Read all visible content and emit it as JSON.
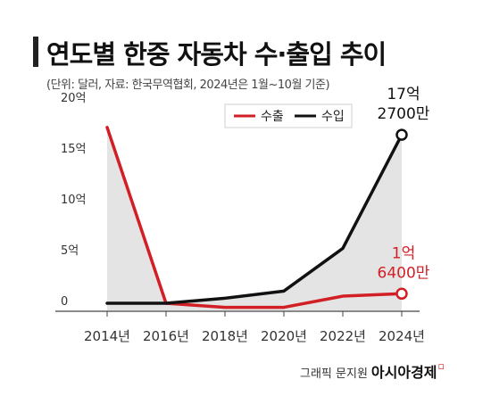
{
  "header": {
    "title": "연도별 한중 자동차 수·출입 추이",
    "subtitle": "(단위: 달러, 자료: 한국무역협회, 2024년은 1월~10월 기준)"
  },
  "footer": {
    "credit": "그래픽 문지원",
    "brand": "아시아경제",
    "brand_mark": "ㅁ"
  },
  "colors": {
    "export": "#d21f26",
    "import": "#111111",
    "area_fill": "#e4e4e4",
    "axis": "#444444"
  },
  "chart_data": {
    "type": "line",
    "x": [
      2014,
      2016,
      2018,
      2020,
      2022,
      2024
    ],
    "xticks": [
      "2014년",
      "2016년",
      "2018년",
      "2020년",
      "2022년",
      "2024년"
    ],
    "ylim": [
      0,
      20
    ],
    "yticks": [
      0,
      5,
      10,
      15,
      20
    ],
    "ytick_labels": [
      "0",
      "5억",
      "10억",
      "15억",
      "20억"
    ],
    "series": [
      {
        "name": "수출",
        "values": [
          18,
          0.7,
          0.3,
          0.3,
          1.4,
          1.64
        ],
        "color": "#d21f26"
      },
      {
        "name": "수입",
        "values": [
          0.7,
          0.7,
          1.2,
          1.9,
          6.1,
          17.27
        ],
        "color": "#111111"
      }
    ],
    "annotations": [
      {
        "series": "수입",
        "line1": "17억",
        "line2": "2700만"
      },
      {
        "series": "수출",
        "line1": "1억",
        "line2": "6400만"
      }
    ],
    "legend": {
      "position": "top-right",
      "items": [
        "수출",
        "수입"
      ]
    },
    "grid": false
  }
}
